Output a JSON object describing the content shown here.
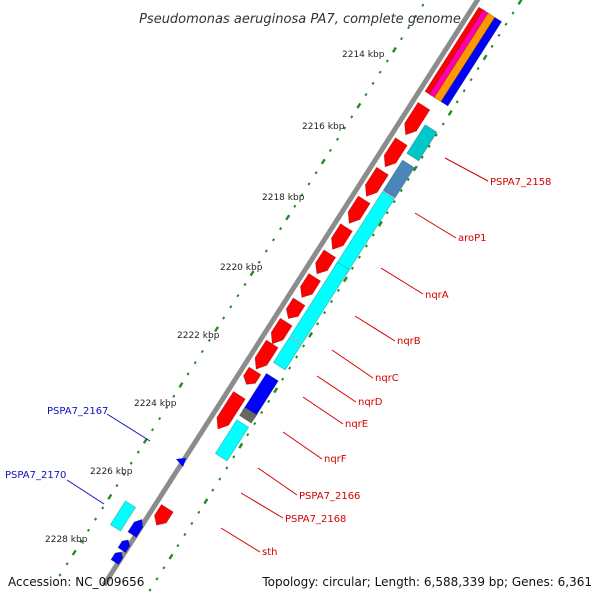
{
  "header": {
    "title": "Pseudomonas aeruginosa PA7, complete genome"
  },
  "footer": {
    "accession": "Accession: NC_009656",
    "topology": "Topology: circular; Length: 6,588,339 bp; Genes: 6,361"
  },
  "colors": {
    "backbone": "#8c8c8c",
    "tick_green": "#1e8c1e",
    "gene_red": "#ff0000",
    "gene_cyan": "#00ffff",
    "gene_blue": "#0000ff",
    "gene_steel": "#4a86b8",
    "gene_teal": "#00c8c8",
    "label_red": "#d40000",
    "label_blue": "#1010c0"
  },
  "ruler": {
    "labels": [
      "2214 kbp",
      "2216 kbp",
      "2218 kbp",
      "2220 kbp",
      "2222 kbp",
      "2224 kbp",
      "2226 kbp",
      "2228 kbp"
    ]
  },
  "genes": {
    "right_labels": [
      "PSPA7_2158",
      "aroP1",
      "nqrA",
      "nqrB",
      "nqrC",
      "nqrD",
      "nqrE",
      "nqrF",
      "PSPA7_2166",
      "PSPA7_2168",
      "sth"
    ],
    "left_labels": [
      "PSPA7_2167",
      "PSPA7_2170"
    ]
  }
}
